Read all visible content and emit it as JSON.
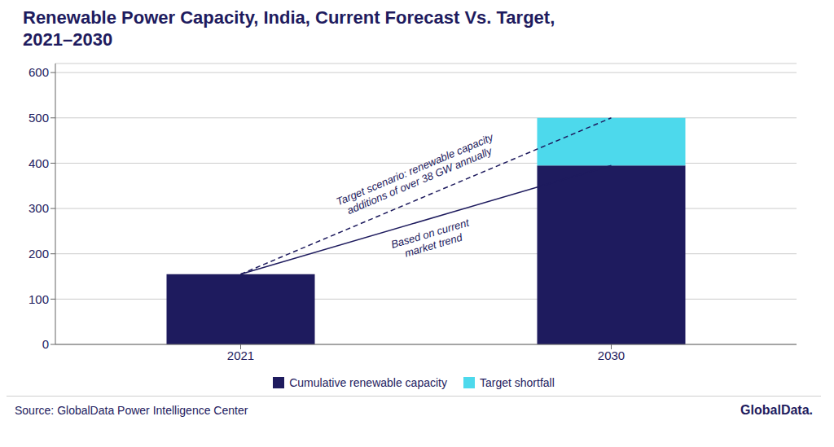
{
  "chart_data": {
    "type": "bar",
    "title": "Renewable Power Capacity, India, Current Forecast Vs. Target,\n2021–2030",
    "categories": [
      "2021",
      "2030"
    ],
    "series": [
      {
        "name": "Cumulative renewable capacity",
        "color": "#1e1b5e",
        "values": [
          155,
          395
        ]
      },
      {
        "name": "Target shortfall",
        "color": "#4dd9ec",
        "values": [
          0,
          105
        ]
      }
    ],
    "stacked": true,
    "ylim": [
      0,
      620
    ],
    "yticks": [
      0,
      100,
      200,
      300,
      400,
      500,
      600
    ],
    "grid": true,
    "legend": "bottom",
    "annotations": [
      {
        "text": "Target scenario: renewable capacity\nadditions of over 38 GW annually",
        "line_style": "dashed"
      },
      {
        "text": "Based on current\nmarket trend",
        "line_style": "solid"
      }
    ],
    "source": "Source: GlobalData Power Intelligence Center",
    "logo": "GlobalData."
  }
}
